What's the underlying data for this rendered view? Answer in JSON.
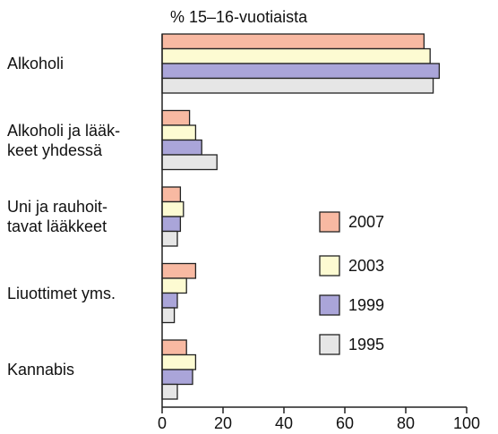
{
  "chart_data": {
    "type": "bar",
    "orientation": "horizontal",
    "x_label": "% 15–16-vuotiaista",
    "categories": [
      "Alkoholi",
      "Alkoholi ja lääk-\nkeet yhdessä",
      "Uni ja rauhoit-\ntavat lääkkeet",
      "Liuottimet yms.",
      "Kannabis"
    ],
    "series": [
      {
        "name": "2007",
        "color": "#f8b9a2",
        "values": [
          86,
          9,
          6,
          11,
          8
        ]
      },
      {
        "name": "2003",
        "color": "#fdfbd2",
        "values": [
          88,
          11,
          7,
          8,
          11
        ]
      },
      {
        "name": "1999",
        "color": "#aaa5d9",
        "values": [
          91,
          13,
          6,
          5,
          10
        ]
      },
      {
        "name": "1995",
        "color": "#e6e6e6",
        "values": [
          89,
          18,
          5,
          4,
          5
        ]
      }
    ],
    "xlim": [
      0,
      100
    ],
    "xticks": [
      0,
      20,
      40,
      60,
      80,
      100
    ]
  }
}
